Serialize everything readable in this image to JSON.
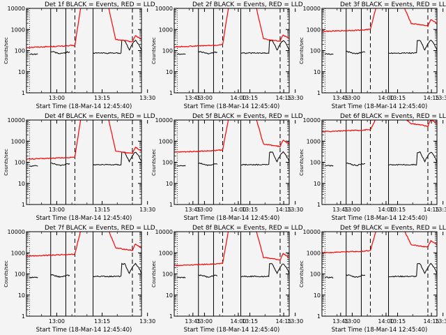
{
  "chart_data": {
    "type": "line",
    "y_scale": "log",
    "ylim": [
      1,
      10000
    ],
    "y_tick_labels": [
      "1",
      "10",
      "100",
      "1000",
      "10000"
    ],
    "y_tick_values": [
      1,
      10,
      100,
      1000,
      10000
    ],
    "xlim_minutes_after_12h": [
      50,
      88
    ],
    "x_tick_labels": [
      "13:00",
      "13:15",
      "13:30",
      "13:45",
      "14:00",
      "14:15"
    ],
    "x_tick_values_minutes_after_12h": [
      60,
      75,
      90,
      105,
      120,
      135
    ],
    "xlabel": "Start Time (18-Mar-14 12:45:40)",
    "ylabel": "Counts/sec",
    "legend_text": "BLACK = Events, RED = LLD",
    "series_names": [
      "Events",
      "LLD"
    ],
    "series_colors": {
      "Events": "#000000",
      "LLD": "#ff0000"
    },
    "solid_markers_minutes": [
      58,
      63,
      72,
      101
    ],
    "dashed_markers_minutes": [
      66,
      85,
      105.5
    ],
    "dotted_markers_minutes": [
      51,
      133
    ],
    "panels": [
      {
        "title": "Det 1f",
        "lld_baseline": 140
      },
      {
        "title": "Det 2f",
        "lld_baseline": 150
      },
      {
        "title": "Det 3f",
        "lld_baseline": 800
      },
      {
        "title": "Det 4f",
        "lld_baseline": 140
      },
      {
        "title": "Det 5f",
        "lld_baseline": 300
      },
      {
        "title": "Det 6f",
        "lld_baseline": 2800
      },
      {
        "title": "Det 7f",
        "lld_baseline": 700
      },
      {
        "title": "Det 8f",
        "lld_baseline": 250
      },
      {
        "title": "Det 9f",
        "lld_baseline": 1000
      }
    ],
    "events_baseline": 85
  }
}
